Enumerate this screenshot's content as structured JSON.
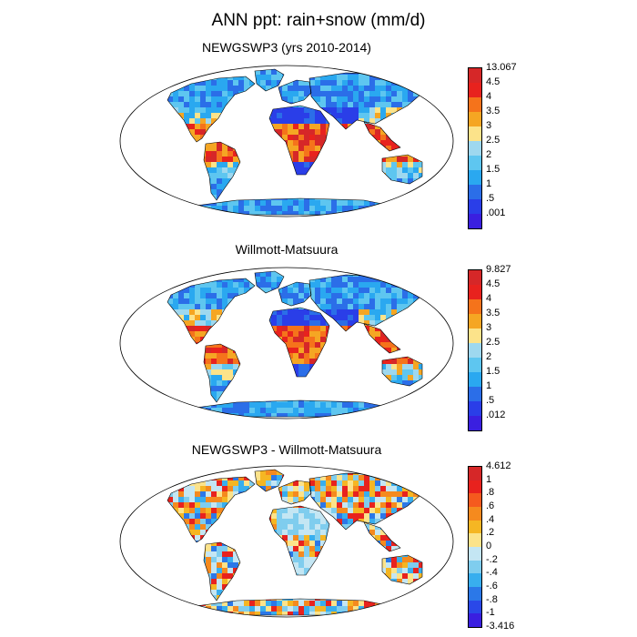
{
  "title": "ANN ppt: rain+snow (mm/d)",
  "panels": [
    {
      "title": "NEWGSWP3 (yrs 2010-2014)",
      "colorbar": {
        "labels": [
          "13.067",
          "4.5",
          "4",
          "3.5",
          "3",
          "2.5",
          "2",
          "1.5",
          "1",
          ".5",
          ".001"
        ],
        "colors": [
          "#d62728",
          "#e8221e",
          "#f5731b",
          "#f5a623",
          "#fce38a",
          "#9ed8ef",
          "#5ec6f0",
          "#2aa8f0",
          "#2b6ee8",
          "#2a3ee8",
          "#3a1fe0"
        ]
      }
    },
    {
      "title": "Willmott-Matsuura",
      "colorbar": {
        "labels": [
          "9.827",
          "4.5",
          "4",
          "3.5",
          "3",
          "2.5",
          "2",
          "1.5",
          "1",
          ".5",
          ".012"
        ],
        "colors": [
          "#d62728",
          "#e8221e",
          "#f5731b",
          "#f5a623",
          "#fce38a",
          "#9ed8ef",
          "#5ec6f0",
          "#2aa8f0",
          "#2b6ee8",
          "#2a3ee8",
          "#3a1fe0"
        ]
      }
    },
    {
      "title": "NEWGSWP3 - Willmott-Matsuura",
      "colorbar": {
        "labels": [
          "4.612",
          "1",
          ".8",
          ".6",
          ".4",
          ".2",
          "0",
          "-.2",
          "-.4",
          "-.6",
          "-.8",
          "-1",
          "-3.416"
        ],
        "colors": [
          "#d62728",
          "#e8221e",
          "#f55a1e",
          "#f58a1e",
          "#f5b623",
          "#fce38a",
          "#c4e6f3",
          "#7fcdee",
          "#38aeee",
          "#2b78e8",
          "#2a48e8",
          "#3a1fe0"
        ]
      }
    }
  ]
}
